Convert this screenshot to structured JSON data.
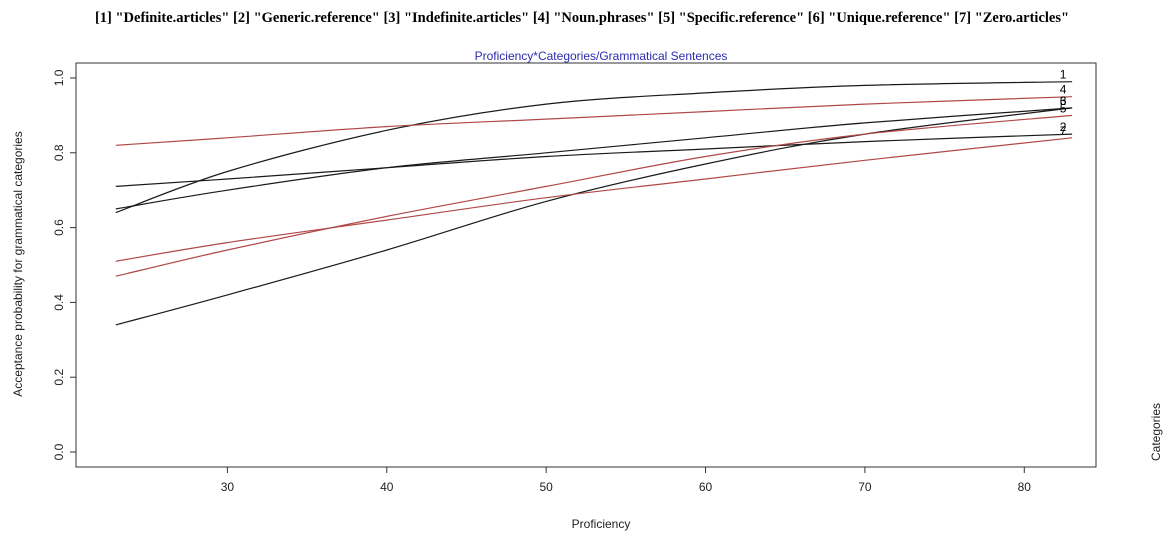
{
  "legend_line": "[1] \"Definite.articles\" [2] \"Generic.reference\" [3] \"Indefinite.articles\" [4] \"Noun.phrases\" [5] \"Specific.reference\" [6] \"Unique.reference\" [7] \"Zero.articles\"",
  "chart_data": {
    "type": "line",
    "title": "Proficiency*Categories/Grammatical Sentences",
    "xlabel": "Proficiency",
    "ylabel": "Acceptance probability for grammatical categories",
    "right_label": "Categories",
    "xlim": [
      20.5,
      84.5
    ],
    "ylim": [
      -0.04,
      1.04
    ],
    "x_ticks": [
      30,
      40,
      50,
      60,
      70,
      80
    ],
    "y_ticks": [
      0.0,
      0.2,
      0.4,
      0.6,
      0.8,
      1.0
    ],
    "y_tick_labels": [
      "0.0",
      "0.2",
      "0.4",
      "0.6",
      "0.8",
      "1.0"
    ],
    "grid": false,
    "colors": {
      "black": "#1a1a1a",
      "red": "#b04848",
      "title": "#2b2bb0"
    },
    "series": [
      {
        "id": "1",
        "label": "1",
        "color": "black",
        "x": [
          23,
          30,
          40,
          50,
          60,
          70,
          83
        ],
        "y": [
          0.64,
          0.75,
          0.86,
          0.93,
          0.96,
          0.98,
          0.99
        ]
      },
      {
        "id": "2",
        "label": "2",
        "color": "black",
        "x": [
          23,
          30,
          40,
          50,
          60,
          70,
          83
        ],
        "y": [
          0.71,
          0.73,
          0.76,
          0.79,
          0.81,
          0.83,
          0.85
        ]
      },
      {
        "id": "3",
        "label": "3",
        "color": "black",
        "x": [
          23,
          30,
          40,
          50,
          60,
          70,
          83
        ],
        "y": [
          0.34,
          0.42,
          0.54,
          0.67,
          0.77,
          0.85,
          0.92
        ]
      },
      {
        "id": "4",
        "label": "4",
        "color": "red",
        "x": [
          23,
          30,
          40,
          50,
          60,
          70,
          83
        ],
        "y": [
          0.82,
          0.84,
          0.87,
          0.89,
          0.91,
          0.93,
          0.95
        ]
      },
      {
        "id": "5",
        "label": "5",
        "color": "red",
        "x": [
          23,
          30,
          40,
          50,
          60,
          70,
          83
        ],
        "y": [
          0.47,
          0.54,
          0.63,
          0.71,
          0.79,
          0.85,
          0.9
        ]
      },
      {
        "id": "6",
        "label": "6",
        "color": "black",
        "x": [
          23,
          30,
          40,
          50,
          60,
          70,
          83
        ],
        "y": [
          0.65,
          0.7,
          0.76,
          0.8,
          0.84,
          0.88,
          0.92
        ]
      },
      {
        "id": "7",
        "label": "7",
        "color": "red",
        "x": [
          23,
          30,
          40,
          50,
          60,
          70,
          83
        ],
        "y": [
          0.51,
          0.56,
          0.62,
          0.68,
          0.73,
          0.78,
          0.84
        ]
      }
    ]
  }
}
